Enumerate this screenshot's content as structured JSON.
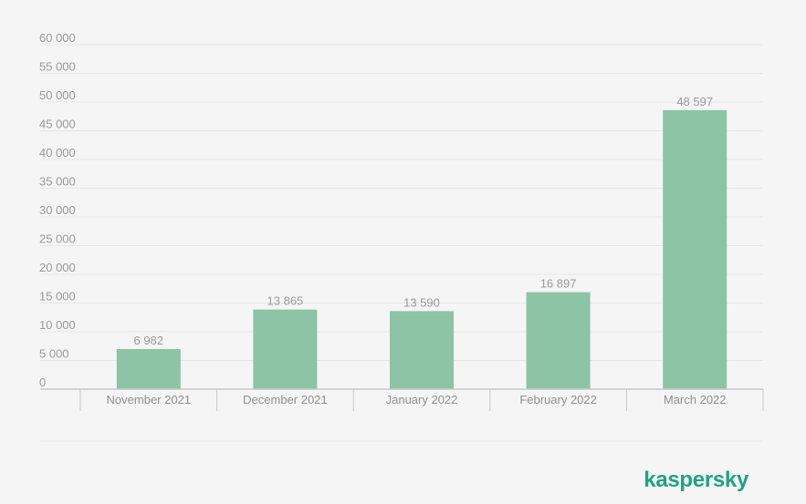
{
  "chart_data": {
    "type": "bar",
    "categories": [
      "November 2021",
      "December 2021",
      "January 2022",
      "February 2022",
      "March 2022"
    ],
    "values": [
      6982,
      13865,
      13590,
      16897,
      48597
    ],
    "data_labels": [
      "6 982",
      "13 865",
      "13 590",
      "16 897",
      "48 597"
    ],
    "y_tick_labels": [
      "0",
      "5 000",
      "10 000",
      "15 000",
      "20 000",
      "25 000",
      "30 000",
      "35 000",
      "40 000",
      "45 000",
      "50 000",
      "55 000",
      "60 000"
    ],
    "ylim": [
      0,
      60000
    ],
    "y_tick_step": 5000,
    "title": "",
    "xlabel": "",
    "ylabel": "",
    "grid": true,
    "legend": "none",
    "colors": {
      "bar": "#8cc4a5",
      "grid": "#e6e6e6",
      "axis": "#c8c8c8",
      "text": "#9a9a9a",
      "background": "#f5f5f5"
    }
  },
  "logo": {
    "text": "kaspersky",
    "color": "#1fa383"
  }
}
